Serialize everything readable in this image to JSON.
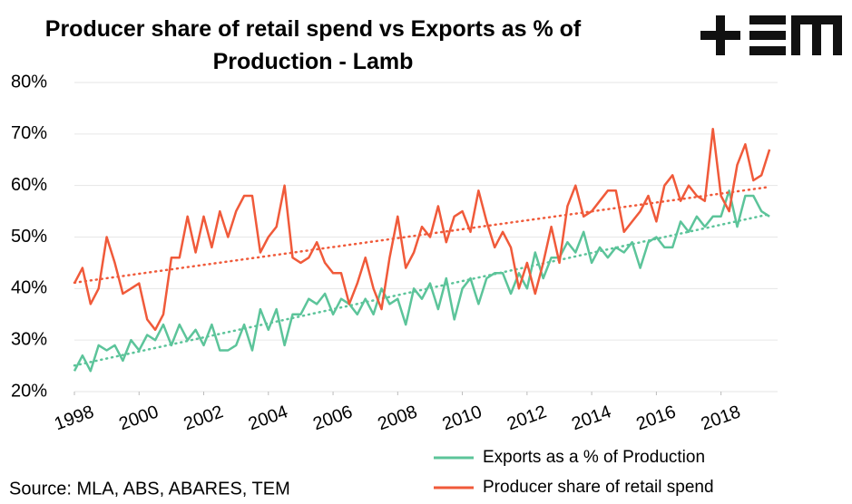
{
  "chart_data": {
    "type": "line",
    "title": "Producer share of retail spend vs Exports as % of Production - Lamb",
    "source": "Source: MLA, ABS, ABARES, TEM",
    "x": [
      1998,
      1998.25,
      1998.5,
      1998.75,
      1999,
      1999.25,
      1999.5,
      1999.75,
      2000,
      2000.25,
      2000.5,
      2000.75,
      2001,
      2001.25,
      2001.5,
      2001.75,
      2002,
      2002.25,
      2002.5,
      2002.75,
      2003,
      2003.25,
      2003.5,
      2003.75,
      2004,
      2004.25,
      2004.5,
      2004.75,
      2005,
      2005.25,
      2005.5,
      2005.75,
      2006,
      2006.25,
      2006.5,
      2006.75,
      2007,
      2007.25,
      2007.5,
      2007.75,
      2008,
      2008.25,
      2008.5,
      2008.75,
      2009,
      2009.25,
      2009.5,
      2009.75,
      2010,
      2010.25,
      2010.5,
      2010.75,
      2011,
      2011.25,
      2011.5,
      2011.75,
      2012,
      2012.25,
      2012.5,
      2012.75,
      2013,
      2013.25,
      2013.5,
      2013.75,
      2014,
      2014.25,
      2014.5,
      2014.75,
      2015,
      2015.25,
      2015.5,
      2015.75,
      2016,
      2016.25,
      2016.5,
      2016.75,
      2017,
      2017.25,
      2017.5,
      2017.75,
      2018,
      2018.25,
      2018.5,
      2018.75,
      2019,
      2019.25,
      2019.5
    ],
    "series": [
      {
        "name": "Exports as a % of Production",
        "color": "#5cc49a",
        "values": [
          24,
          27,
          24,
          29,
          28,
          29,
          26,
          30,
          28,
          31,
          30,
          33,
          29,
          33,
          30,
          32,
          29,
          33,
          28,
          28,
          29,
          33,
          28,
          36,
          32,
          36,
          29,
          35,
          35,
          38,
          37,
          39,
          35,
          38,
          37,
          35,
          38,
          35,
          40,
          37,
          38,
          33,
          40,
          38,
          41,
          36,
          42,
          34,
          40,
          42,
          37,
          42,
          43,
          43,
          39,
          43,
          40,
          47,
          42,
          46,
          46,
          49,
          47,
          51,
          45,
          48,
          46,
          48,
          47,
          49,
          44,
          49,
          50,
          48,
          48,
          53,
          51,
          54,
          52,
          54,
          54,
          59,
          52,
          58,
          58,
          55,
          54
        ]
      },
      {
        "name": "Producer share of retail spend",
        "color": "#f05a3a",
        "values": [
          41,
          44,
          37,
          40,
          50,
          45,
          39,
          40,
          41,
          34,
          32,
          35,
          46,
          46,
          54,
          47,
          54,
          48,
          55,
          50,
          55,
          58,
          58,
          47,
          50,
          52,
          60,
          46,
          45,
          46,
          49,
          45,
          43,
          43,
          37,
          41,
          46,
          40,
          36,
          46,
          54,
          44,
          47,
          52,
          50,
          56,
          49,
          54,
          55,
          51,
          59,
          53,
          48,
          51,
          48,
          40,
          45,
          39,
          45,
          52,
          45,
          56,
          60,
          54,
          55,
          57,
          59,
          59,
          51,
          53,
          55,
          58,
          53,
          60,
          62,
          57,
          60,
          58,
          57,
          71,
          58,
          55,
          64,
          68,
          61,
          62,
          67
        ]
      }
    ],
    "trendline": true,
    "xlim": [
      1998,
      2019.75
    ],
    "xticks": [
      1998,
      2000,
      2002,
      2004,
      2006,
      2008,
      2010,
      2012,
      2014,
      2016,
      2018
    ],
    "ylim": [
      20,
      80
    ],
    "yticks": [
      {
        "value": 20,
        "label": "20%"
      },
      {
        "value": 30,
        "label": "30%"
      },
      {
        "value": 40,
        "label": "40%"
      },
      {
        "value": 50,
        "label": "50%"
      },
      {
        "value": 60,
        "label": "60%"
      },
      {
        "value": 70,
        "label": "70%"
      },
      {
        "value": 80,
        "label": "80%"
      }
    ],
    "grid": true
  }
}
